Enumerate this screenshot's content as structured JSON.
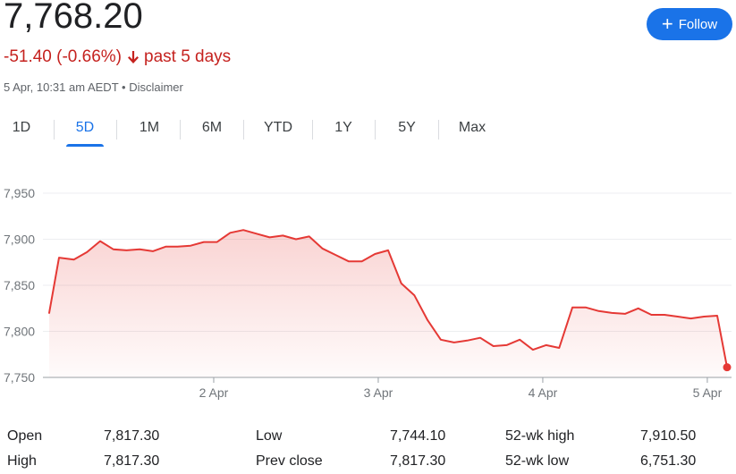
{
  "header": {
    "price": "7,768.20",
    "change": "-51.40 (-0.66%)",
    "period": "past 5 days",
    "timestamp": "5 Apr, 10:31 am AEDT",
    "separator": " • ",
    "disclaimer": "Disclaimer",
    "follow_label": "Follow",
    "colors": {
      "negative": "#c5221f",
      "accent": "#1a73e8"
    }
  },
  "tabs": [
    {
      "label": "1D",
      "active": false
    },
    {
      "label": "5D",
      "active": true
    },
    {
      "label": "1M",
      "active": false
    },
    {
      "label": "6M",
      "active": false
    },
    {
      "label": "YTD",
      "active": false
    },
    {
      "label": "1Y",
      "active": false
    },
    {
      "label": "5Y",
      "active": false
    },
    {
      "label": "Max",
      "active": false
    }
  ],
  "chart_data": {
    "type": "area",
    "y_ticks": [
      "7,950",
      "7,900",
      "7,850",
      "7,800",
      "7,750"
    ],
    "y_tick_values": [
      7950,
      7900,
      7850,
      7800,
      7750
    ],
    "ylim": [
      7750,
      7960
    ],
    "x_ticks": [
      "2 Apr",
      "3 Apr",
      "4 Apr",
      "5 Apr"
    ],
    "x_tick_values": [
      1,
      2,
      3,
      4
    ],
    "xlim": [
      0.0,
      4.12
    ],
    "line_color": "#e53935",
    "grid": true,
    "x": [
      0.0,
      0.06,
      0.15,
      0.23,
      0.31,
      0.39,
      0.47,
      0.55,
      0.63,
      0.71,
      0.78,
      0.86,
      0.94,
      1.02,
      1.1,
      1.18,
      1.26,
      1.34,
      1.42,
      1.5,
      1.58,
      1.66,
      1.74,
      1.82,
      1.9,
      1.98,
      2.06,
      2.14,
      2.22,
      2.3,
      2.38,
      2.46,
      2.54,
      2.62,
      2.7,
      2.78,
      2.86,
      2.94,
      3.02,
      3.1,
      3.18,
      3.26,
      3.34,
      3.42,
      3.5,
      3.58,
      3.66,
      3.74,
      3.82,
      3.9,
      3.98,
      4.06,
      4.12
    ],
    "y": [
      7820,
      7880,
      7878,
      7886,
      7898,
      7889,
      7888,
      7889,
      7887,
      7892,
      7892,
      7893,
      7897,
      7897,
      7907,
      7910,
      7906,
      7902,
      7904,
      7900,
      7903,
      7890,
      7883,
      7876,
      7876,
      7884,
      7888,
      7852,
      7839,
      7812,
      7791,
      7788,
      7790,
      7793,
      7784,
      7785,
      7791,
      7780,
      7785,
      7782,
      7826,
      7826,
      7822,
      7820,
      7819,
      7825,
      7818,
      7818,
      7816,
      7814,
      7816,
      7817,
      7761
    ]
  },
  "stats": {
    "rows": [
      [
        {
          "label": "Open",
          "value": "7,817.30"
        },
        {
          "label": "Low",
          "value": "7,744.10"
        },
        {
          "label": "52-wk high",
          "value": "7,910.50"
        }
      ],
      [
        {
          "label": "High",
          "value": "7,817.30"
        },
        {
          "label": "Prev close",
          "value": "7,817.30"
        },
        {
          "label": "52-wk low",
          "value": "6,751.30"
        }
      ]
    ]
  }
}
